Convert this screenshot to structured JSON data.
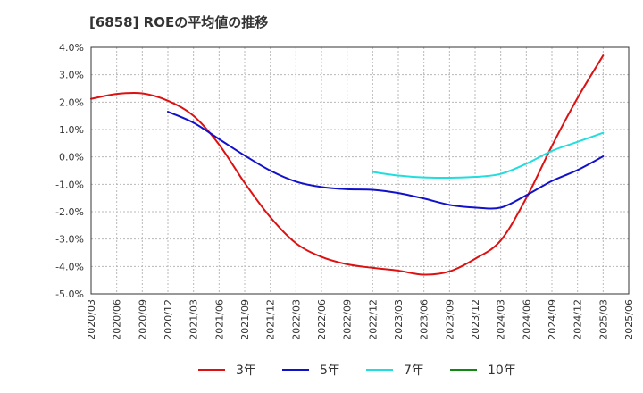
{
  "chart_data": {
    "type": "line",
    "title": "[6858]  ROEの平均値の推移",
    "xlabel": "",
    "ylabel": "",
    "ylim": [
      -5.0,
      4.0
    ],
    "y_ticks": [
      "4.0%",
      "3.0%",
      "2.0%",
      "1.0%",
      "0.0%",
      "-1.0%",
      "-2.0%",
      "-3.0%",
      "-4.0%",
      "-5.0%"
    ],
    "x_ticks": [
      "2020/03",
      "2020/06",
      "2020/09",
      "2020/12",
      "2021/03",
      "2021/06",
      "2021/09",
      "2021/12",
      "2022/03",
      "2022/06",
      "2022/09",
      "2022/12",
      "2023/03",
      "2023/06",
      "2023/09",
      "2023/12",
      "2024/03",
      "2024/06",
      "2024/09",
      "2024/12",
      "2025/03",
      "2025/06"
    ],
    "grid": true,
    "legend_position": "bottom",
    "series": [
      {
        "name": "3年",
        "color": "#dd1111",
        "x": [
          "2020/03",
          "2020/06",
          "2020/09",
          "2020/12",
          "2021/03",
          "2021/06",
          "2021/09",
          "2021/12",
          "2022/03",
          "2022/06",
          "2022/09",
          "2022/12",
          "2023/03",
          "2023/06",
          "2023/09",
          "2023/12",
          "2024/03",
          "2024/06",
          "2024/09",
          "2024/12",
          "2025/03"
        ],
        "values": [
          2.12,
          2.3,
          2.32,
          2.05,
          1.5,
          0.45,
          -0.95,
          -2.2,
          -3.15,
          -3.65,
          -3.92,
          -4.05,
          -4.15,
          -4.3,
          -4.18,
          -3.72,
          -3.05,
          -1.5,
          0.4,
          2.15,
          3.7
        ]
      },
      {
        "name": "5年",
        "color": "#1111cc",
        "x": [
          "2020/12",
          "2021/03",
          "2021/06",
          "2021/09",
          "2021/12",
          "2022/03",
          "2022/06",
          "2022/09",
          "2022/12",
          "2023/03",
          "2023/06",
          "2023/09",
          "2023/12",
          "2024/03",
          "2024/06",
          "2024/09",
          "2024/12",
          "2025/03"
        ],
        "values": [
          1.65,
          1.25,
          0.65,
          0.05,
          -0.5,
          -0.9,
          -1.1,
          -1.18,
          -1.2,
          -1.32,
          -1.52,
          -1.75,
          -1.85,
          -1.85,
          -1.4,
          -0.88,
          -0.48,
          0.02
        ]
      },
      {
        "name": "7年",
        "color": "#22dddd",
        "x": [
          "2022/12",
          "2023/03",
          "2023/06",
          "2023/09",
          "2023/12",
          "2024/03",
          "2024/06",
          "2024/09",
          "2024/12",
          "2025/03"
        ],
        "values": [
          -0.55,
          -0.68,
          -0.75,
          -0.76,
          -0.73,
          -0.62,
          -0.25,
          0.22,
          0.55,
          0.88
        ]
      },
      {
        "name": "10年",
        "color": "#118811",
        "x": [],
        "values": []
      }
    ]
  }
}
